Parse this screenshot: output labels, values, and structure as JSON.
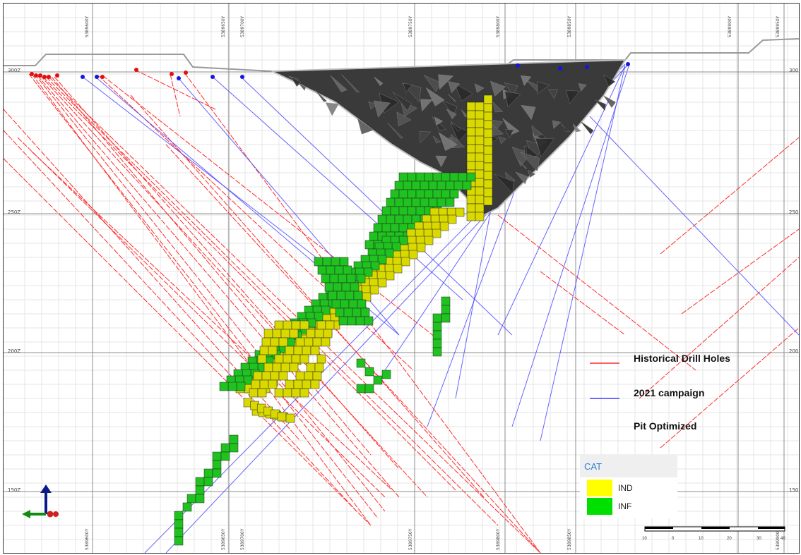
{
  "elevation_labels": [
    "300Z",
    "250Z",
    "200Z",
    "150Z"
  ],
  "elevation_labels_right": [
    "300",
    "250",
    "200",
    "150"
  ],
  "northing_labels_top": [
    "5389600Y",
    "5389650Y",
    "5389700Y",
    "5389750Y",
    "5389800Y",
    "5389850Y",
    "5389900Y",
    "5389950Y"
  ],
  "northing_labels_bottom": [
    "5389600Y",
    "5389650Y",
    "5389700Y",
    "5389750Y",
    "5389800Y",
    "5389850Y",
    "5389900Y"
  ],
  "legend": {
    "historical": {
      "label": "Historical Drill Holes",
      "color": "#ff2b2b"
    },
    "campaign": {
      "label": "2021 campaign",
      "color": "#3a3aff"
    },
    "pit": {
      "label": "Pit Optimized"
    }
  },
  "cat_legend": {
    "title": "CAT",
    "items": [
      {
        "label": "IND",
        "color": "#ffff00"
      },
      {
        "label": "INF",
        "color": "#00e000"
      }
    ]
  },
  "scale_bar": {
    "ticks": [
      "10",
      "0",
      "10",
      "20",
      "30",
      "40"
    ]
  },
  "colors": {
    "ind_block": "#d9d900",
    "inf_block": "#1fc21f",
    "pit": "#3a3a3a"
  }
}
